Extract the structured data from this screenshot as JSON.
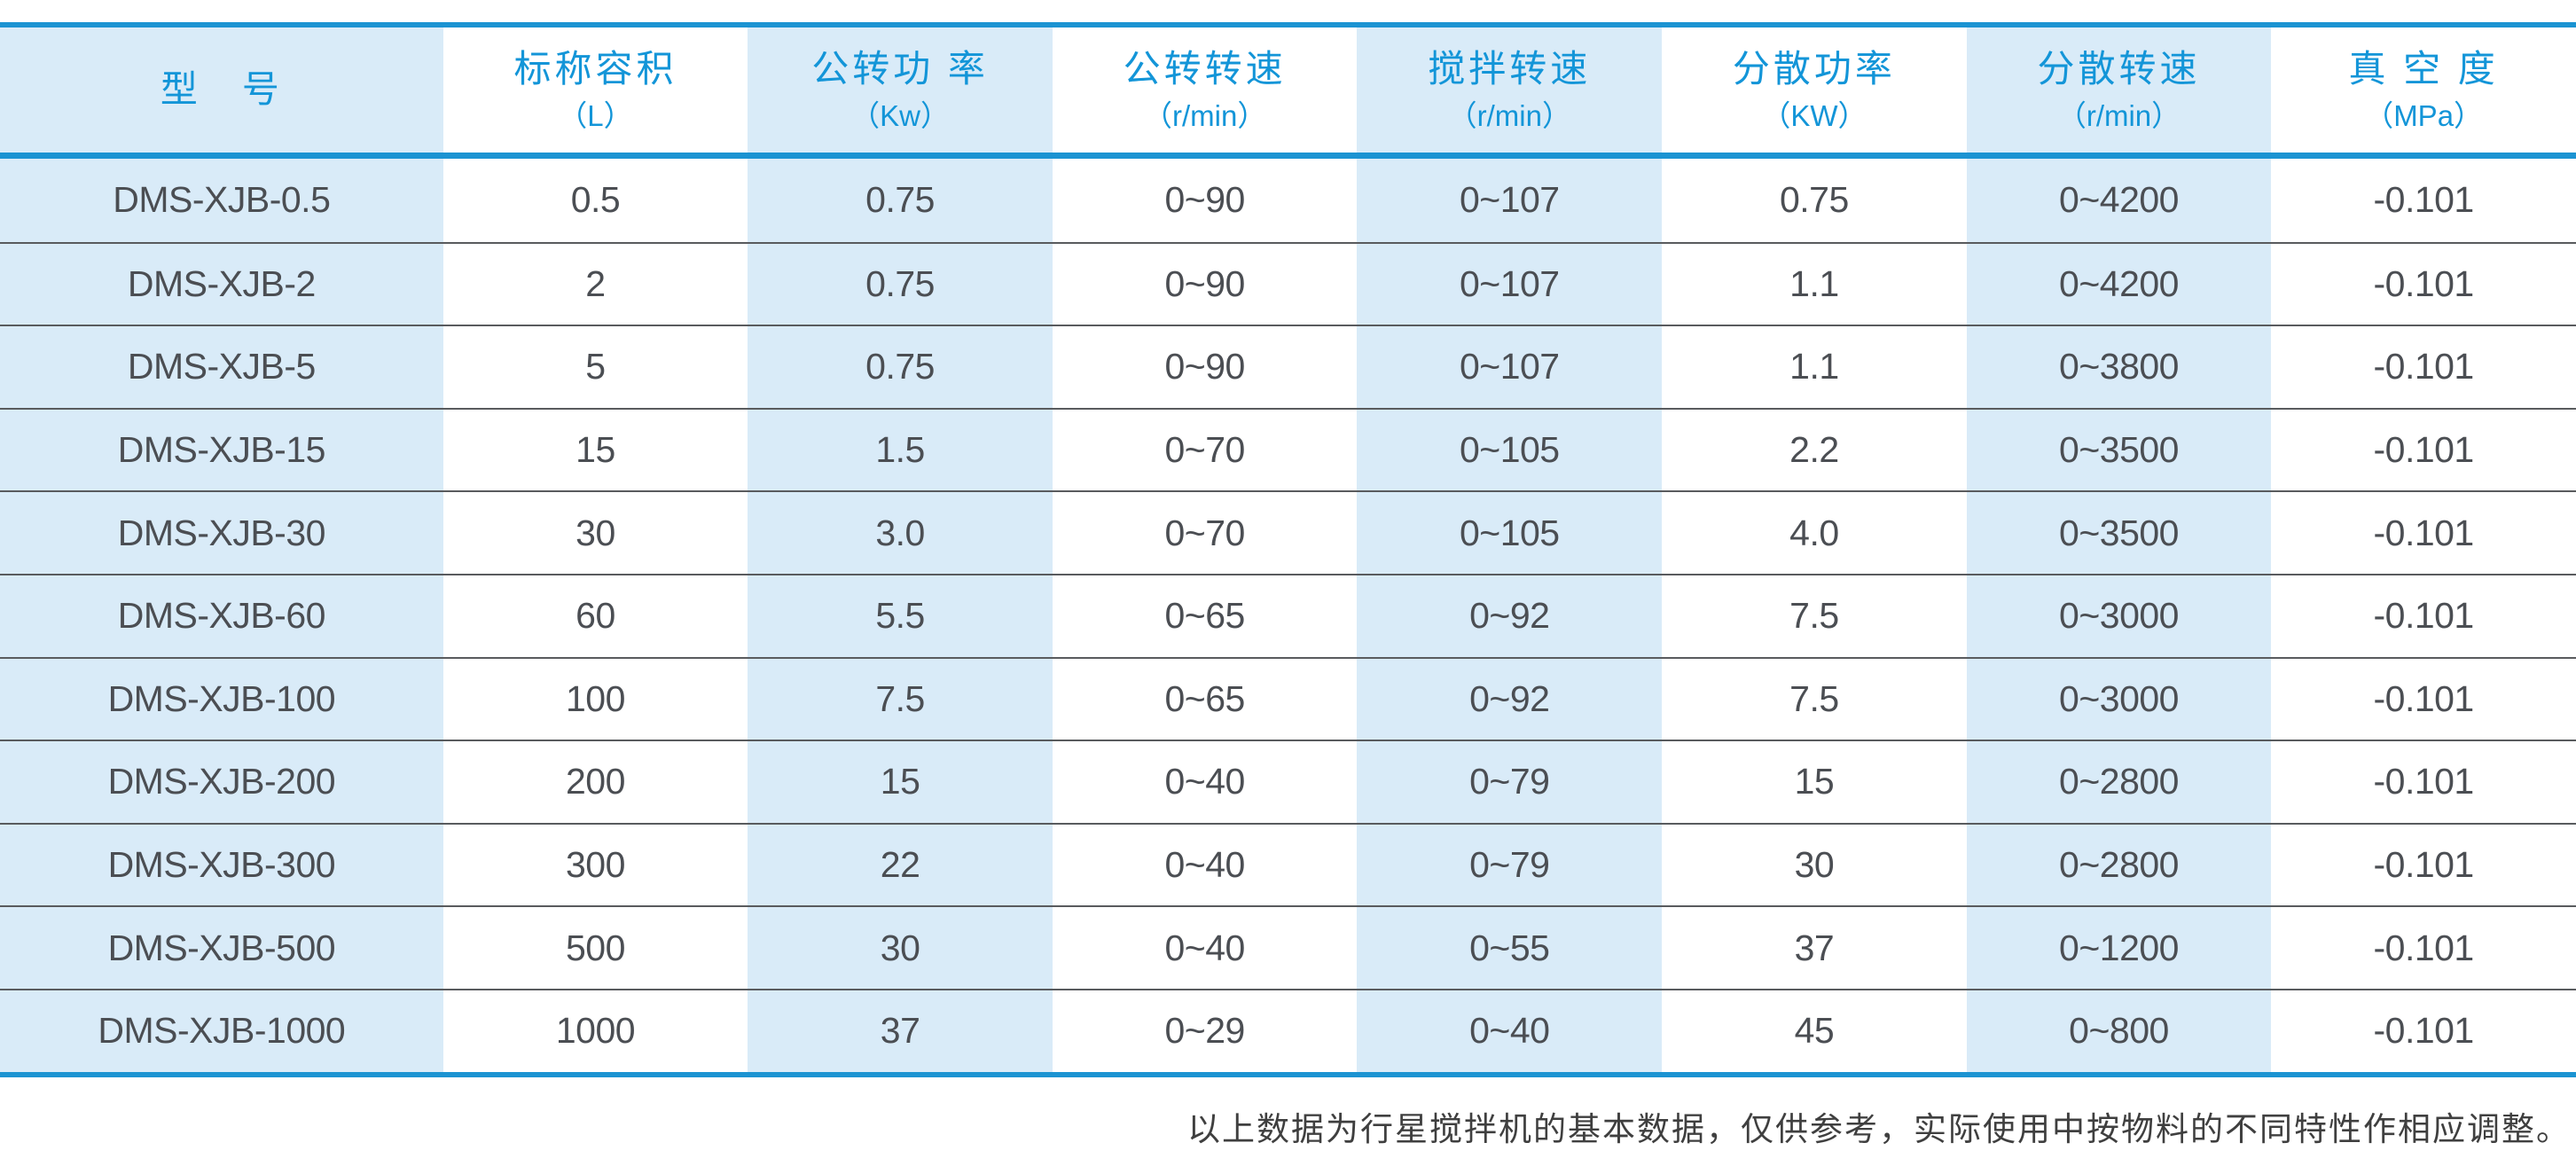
{
  "table": {
    "columns": [
      {
        "title": "型　号",
        "unit": ""
      },
      {
        "title": "标称容积",
        "unit": "（L）"
      },
      {
        "title": "公转功 率",
        "unit": "（Kw）"
      },
      {
        "title": "公转转速",
        "unit": "（r/min）"
      },
      {
        "title": "搅拌转速",
        "unit": "（r/min）"
      },
      {
        "title": "分散功率",
        "unit": "（KW）"
      },
      {
        "title": "分散转速",
        "unit": "（r/min）"
      },
      {
        "title": "真 空 度",
        "unit": "（MPa）"
      }
    ],
    "rows": [
      [
        "DMS-XJB-0.5",
        "0.5",
        "0.75",
        "0~90",
        "0~107",
        "0.75",
        "0~4200",
        "-0.101"
      ],
      [
        "DMS-XJB-2",
        "2",
        "0.75",
        "0~90",
        "0~107",
        "1.1",
        "0~4200",
        "-0.101"
      ],
      [
        "DMS-XJB-5",
        "5",
        "0.75",
        "0~90",
        "0~107",
        "1.1",
        "0~3800",
        "-0.101"
      ],
      [
        "DMS-XJB-15",
        "15",
        "1.5",
        "0~70",
        "0~105",
        "2.2",
        "0~3500",
        "-0.101"
      ],
      [
        "DMS-XJB-30",
        "30",
        "3.0",
        "0~70",
        "0~105",
        "4.0",
        "0~3500",
        "-0.101"
      ],
      [
        "DMS-XJB-60",
        "60",
        "5.5",
        "0~65",
        "0~92",
        "7.5",
        "0~3000",
        "-0.101"
      ],
      [
        "DMS-XJB-100",
        "100",
        "7.5",
        "0~65",
        "0~92",
        "7.5",
        "0~3000",
        "-0.101"
      ],
      [
        "DMS-XJB-200",
        "200",
        "15",
        "0~40",
        "0~79",
        "15",
        "0~2800",
        "-0.101"
      ],
      [
        "DMS-XJB-300",
        "300",
        "22",
        "0~40",
        "0~79",
        "30",
        "0~2800",
        "-0.101"
      ],
      [
        "DMS-XJB-500",
        "500",
        "30",
        "0~40",
        "0~55",
        "37",
        "0~1200",
        "-0.101"
      ],
      [
        "DMS-XJB-1000",
        "1000",
        "37",
        "0~29",
        "0~40",
        "45",
        "0~800",
        "-0.101"
      ]
    ]
  },
  "footnote": "以上数据为行星搅拌机的基本数据，仅供参考，实际使用中按物料的不同特性作相应调整。",
  "colors": {
    "accent_blue": "#1b93d2",
    "header_text_blue": "#1395d8",
    "striped_cell_blue": "#d9ebf8",
    "data_text_gray": "#4b4e53",
    "row_separator_gray": "#595b5e"
  }
}
